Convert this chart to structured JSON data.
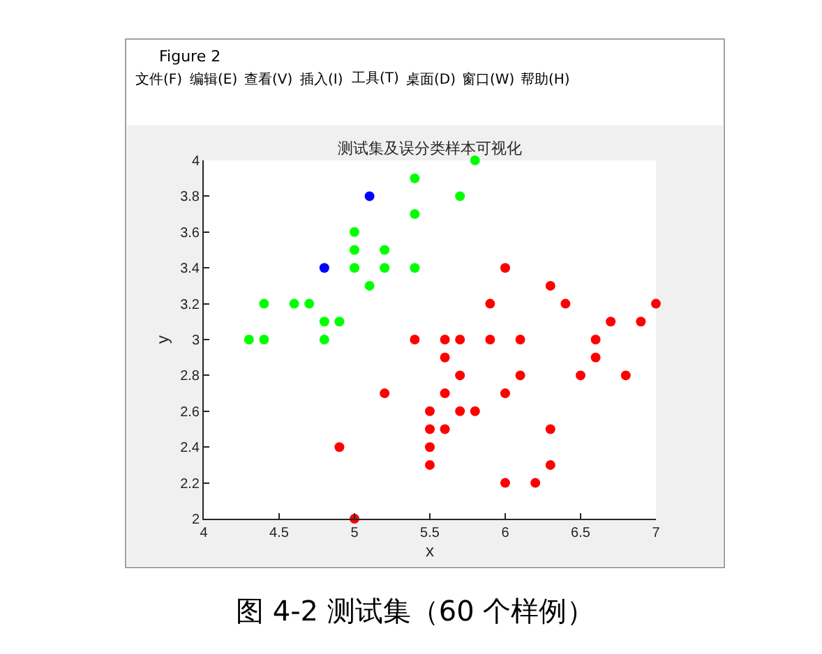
{
  "chart_data": {
    "type": "scatter",
    "title": "测试集及误分类样本可视化",
    "xlabel": "x",
    "ylabel": "y",
    "annotations": [
      "Figure 2",
      "文件(F)",
      "编辑(E)",
      "查看(V)",
      "插入(I)",
      "工具(T)",
      "桌面(D)",
      "窗口(W)",
      "帮助(H)",
      "图 4-2 测试集（60 个样例）"
    ],
    "series": [
      {
        "color": "#00ff00",
        "x": [
          5.8,
          5.4,
          5.7,
          5.4,
          5.0,
          5.0,
          5.2,
          5.0,
          5.2,
          5.4,
          5.1,
          4.4,
          4.6,
          4.7,
          4.8,
          4.9,
          4.3,
          4.4,
          4.8
        ],
        "values": [
          4.0,
          3.9,
          3.8,
          3.7,
          3.6,
          3.5,
          3.5,
          3.4,
          3.4,
          3.4,
          3.3,
          3.2,
          3.2,
          3.2,
          3.1,
          3.1,
          3.0,
          3.0,
          3.0
        ]
      },
      {
        "color": "#0000ff",
        "x": [
          4.8,
          5.1
        ],
        "values": [
          3.4,
          3.8
        ]
      },
      {
        "color": "#ff0000",
        "x": [
          6.0,
          6.3,
          5.9,
          6.4,
          7.0,
          6.7,
          6.9,
          5.4,
          5.6,
          5.7,
          5.9,
          6.1,
          6.6,
          5.6,
          6.6,
          5.7,
          6.1,
          6.5,
          6.8,
          5.2,
          5.6,
          6.0,
          5.5,
          5.7,
          5.8,
          5.5,
          5.6,
          6.3,
          4.9,
          5.5,
          5.5,
          6.3,
          6.0,
          6.2,
          5.0
        ],
        "values": [
          3.4,
          3.3,
          3.2,
          3.2,
          3.2,
          3.1,
          3.1,
          3.0,
          3.0,
          3.0,
          3.0,
          3.0,
          3.0,
          2.9,
          2.9,
          2.8,
          2.8,
          2.8,
          2.8,
          2.7,
          2.7,
          2.7,
          2.6,
          2.6,
          2.6,
          2.5,
          2.5,
          2.5,
          2.4,
          2.4,
          2.3,
          2.3,
          2.2,
          2.2,
          2.0
        ]
      }
    ],
    "xlim": [
      4,
      7
    ],
    "ylim": [
      2,
      4
    ],
    "xticks": [
      4,
      4.5,
      5,
      5.5,
      6,
      6.5,
      7
    ],
    "yticks": [
      2,
      2.2,
      2.4,
      2.6,
      2.8,
      3,
      3.2,
      3.4,
      3.6,
      3.8,
      4
    ],
    "marker": "circle"
  }
}
